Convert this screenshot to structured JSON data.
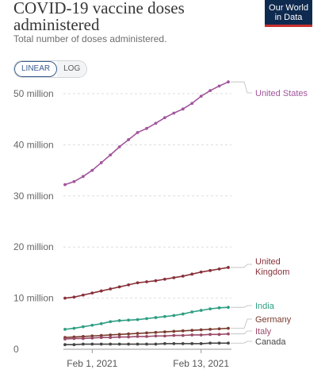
{
  "header": {
    "title": "COVID-19 vaccine doses administered",
    "subtitle": "Total number of doses administered.",
    "logo_line1": "Our World",
    "logo_line2": "in Data"
  },
  "scale_toggle": {
    "linear": "LINEAR",
    "log": "LOG",
    "selected": "LINEAR"
  },
  "colors": {
    "United States": "#a2559c",
    "United Kingdom": "#883039",
    "India": "#2e9e82",
    "Germany": "#7a3b2e",
    "Italy": "#9a4a68",
    "Canada": "#444444"
  },
  "chart_data": {
    "type": "line",
    "title": "COVID-19 vaccine doses administered",
    "subtitle": "Total number of doses administered.",
    "x_tick_labels": [
      "Feb 1, 2021",
      "Feb 13, 2021"
    ],
    "x_tick_index": [
      3,
      15
    ],
    "y_tick_labels": [
      "0",
      "10 million",
      "20 million",
      "30 million",
      "40 million",
      "50 million"
    ],
    "y_tick_values": [
      0,
      10,
      20,
      30,
      40,
      50
    ],
    "y_unit": "million",
    "ylim": [
      0,
      50
    ],
    "grid": "horizontal",
    "x": [
      "Jan 29",
      "Jan 30",
      "Jan 31",
      "Feb 1",
      "Feb 2",
      "Feb 3",
      "Feb 4",
      "Feb 5",
      "Feb 6",
      "Feb 7",
      "Feb 8",
      "Feb 9",
      "Feb 10",
      "Feb 11",
      "Feb 12",
      "Feb 13",
      "Feb 14",
      "Feb 15",
      "Feb 16"
    ],
    "series": [
      {
        "name": "United States",
        "label_lines": [
          "United States"
        ],
        "values": [
          32.2,
          32.8,
          33.8,
          35.0,
          36.5,
          38.0,
          39.6,
          41.0,
          42.4,
          43.2,
          44.2,
          45.3,
          46.2,
          47.0,
          48.1,
          49.5,
          50.6,
          51.5,
          52.3
        ]
      },
      {
        "name": "United Kingdom",
        "label_lines": [
          "United",
          "Kingdom"
        ],
        "values": [
          10.0,
          10.2,
          10.6,
          11.0,
          11.4,
          11.8,
          12.2,
          12.6,
          13.0,
          13.2,
          13.4,
          13.7,
          14.0,
          14.3,
          14.7,
          15.1,
          15.4,
          15.7,
          16.0
        ]
      },
      {
        "name": "India",
        "label_lines": [
          "India"
        ],
        "values": [
          3.9,
          4.1,
          4.4,
          4.7,
          5.0,
          5.4,
          5.6,
          5.7,
          5.8,
          6.0,
          6.2,
          6.4,
          6.6,
          6.9,
          7.3,
          7.6,
          7.9,
          8.1,
          8.2
        ]
      },
      {
        "name": "Germany",
        "label_lines": [
          "Germany"
        ],
        "values": [
          2.3,
          2.4,
          2.5,
          2.6,
          2.7,
          2.8,
          2.9,
          3.0,
          3.1,
          3.2,
          3.3,
          3.4,
          3.5,
          3.6,
          3.7,
          3.8,
          3.9,
          4.0,
          4.1
        ]
      },
      {
        "name": "Italy",
        "label_lines": [
          "Italy"
        ],
        "values": [
          2.0,
          2.1,
          2.1,
          2.2,
          2.3,
          2.3,
          2.4,
          2.4,
          2.5,
          2.5,
          2.6,
          2.6,
          2.7,
          2.7,
          2.8,
          2.8,
          2.9,
          2.9,
          3.0
        ]
      },
      {
        "name": "Canada",
        "label_lines": [
          "Canada"
        ],
        "values": [
          0.9,
          0.9,
          1.0,
          1.0,
          1.0,
          1.0,
          1.0,
          1.0,
          1.0,
          1.0,
          1.0,
          1.1,
          1.1,
          1.1,
          1.1,
          1.1,
          1.2,
          1.2,
          1.2
        ]
      }
    ]
  }
}
